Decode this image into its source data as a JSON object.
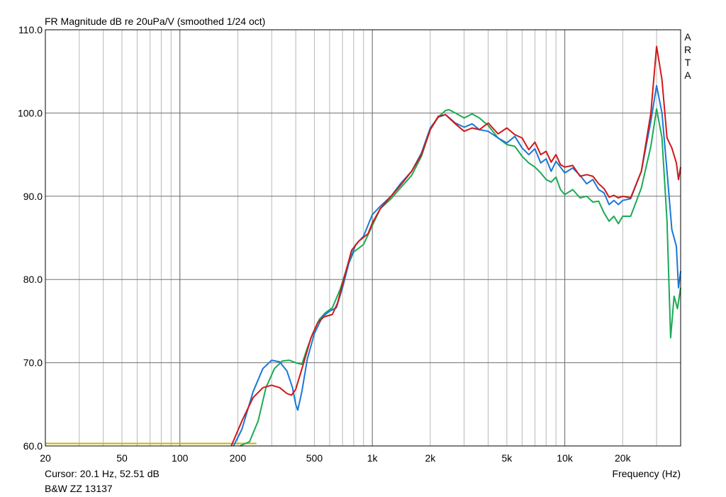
{
  "header": {
    "title": "FR Magnitude dB re 20uPa/V (smoothed 1/24 oct)",
    "brand_letters": [
      "A",
      "R",
      "T",
      "A"
    ]
  },
  "footer": {
    "cursor": "Cursor: 20.1 Hz, 52.51 dB",
    "device": "B&W ZZ 13137"
  },
  "chart_data": {
    "type": "line",
    "title": "FR Magnitude dB re 20uPa/V (smoothed 1/24 oct)",
    "xlabel": "Frequency (Hz)",
    "ylabel": "",
    "x_scale": "log",
    "xlim": [
      20,
      40000
    ],
    "ylim": [
      60,
      110
    ],
    "grid": true,
    "x_ticks": [
      {
        "value": 20,
        "label": "20"
      },
      {
        "value": 50,
        "label": "50"
      },
      {
        "value": 100,
        "label": "100"
      },
      {
        "value": 200,
        "label": "200"
      },
      {
        "value": 500,
        "label": "500"
      },
      {
        "value": 1000,
        "label": "1k"
      },
      {
        "value": 2000,
        "label": "2k"
      },
      {
        "value": 5000,
        "label": "5k"
      },
      {
        "value": 10000,
        "label": "10k"
      },
      {
        "value": 20000,
        "label": "20k"
      },
      {
        "value": 40000,
        "label": ""
      }
    ],
    "y_ticks": [
      {
        "value": 60,
        "label": "60.0"
      },
      {
        "value": 70,
        "label": "70.0"
      },
      {
        "value": 80,
        "label": "80.0"
      },
      {
        "value": 90,
        "label": "90.0"
      },
      {
        "value": 100,
        "label": "100.0"
      },
      {
        "value": 110,
        "label": "110.0"
      }
    ],
    "series": [
      {
        "color": "#c8b400",
        "points": [
          [
            20,
            60.3
          ],
          [
            250,
            60.3
          ]
        ]
      },
      {
        "color": "#1aaa55",
        "points": [
          [
            205,
            60
          ],
          [
            230,
            60.5
          ],
          [
            255,
            63
          ],
          [
            280,
            67
          ],
          [
            310,
            69.3
          ],
          [
            340,
            70.2
          ],
          [
            370,
            70.3
          ],
          [
            400,
            70
          ],
          [
            430,
            69.8
          ],
          [
            460,
            71.8
          ],
          [
            490,
            73.5
          ],
          [
            530,
            75.2
          ],
          [
            570,
            76
          ],
          [
            620,
            76.6
          ],
          [
            680,
            78.8
          ],
          [
            740,
            81.5
          ],
          [
            800,
            83.3
          ],
          [
            900,
            84.2
          ],
          [
            1000,
            86.5
          ],
          [
            1100,
            88.5
          ],
          [
            1250,
            89.7
          ],
          [
            1400,
            91
          ],
          [
            1600,
            92.5
          ],
          [
            1800,
            94.8
          ],
          [
            2000,
            98
          ],
          [
            2200,
            99.5
          ],
          [
            2400,
            100.3
          ],
          [
            2500,
            100.4
          ],
          [
            2700,
            100
          ],
          [
            3000,
            99.4
          ],
          [
            3300,
            99.9
          ],
          [
            3600,
            99.4
          ],
          [
            4000,
            98.5
          ],
          [
            4500,
            97
          ],
          [
            5000,
            96.2
          ],
          [
            5500,
            96
          ],
          [
            6000,
            94.8
          ],
          [
            6500,
            94
          ],
          [
            7000,
            93.5
          ],
          [
            7500,
            92.8
          ],
          [
            8000,
            92
          ],
          [
            8500,
            91.7
          ],
          [
            9000,
            92.3
          ],
          [
            9500,
            90.8
          ],
          [
            10000,
            90.2
          ],
          [
            11000,
            90.8
          ],
          [
            12000,
            89.8
          ],
          [
            13000,
            90
          ],
          [
            14000,
            89.3
          ],
          [
            15000,
            89.4
          ],
          [
            16000,
            88
          ],
          [
            17000,
            87
          ],
          [
            18000,
            87.6
          ],
          [
            19000,
            86.7
          ],
          [
            20000,
            87.6
          ],
          [
            22000,
            87.6
          ],
          [
            25000,
            91
          ],
          [
            28000,
            96
          ],
          [
            30000,
            100.5
          ],
          [
            32000,
            97
          ],
          [
            34000,
            87
          ],
          [
            35500,
            73
          ],
          [
            37000,
            78
          ],
          [
            38500,
            76.5
          ],
          [
            40000,
            79
          ]
        ]
      },
      {
        "color": "#1a78d4",
        "points": [
          [
            190,
            60
          ],
          [
            210,
            62
          ],
          [
            240,
            66.5
          ],
          [
            270,
            69.3
          ],
          [
            300,
            70.3
          ],
          [
            330,
            70.1
          ],
          [
            360,
            69
          ],
          [
            385,
            67
          ],
          [
            400,
            65
          ],
          [
            410,
            64.3
          ],
          [
            430,
            66.5
          ],
          [
            460,
            70.5
          ],
          [
            500,
            73.5
          ],
          [
            550,
            75.5
          ],
          [
            600,
            76.2
          ],
          [
            650,
            76.6
          ],
          [
            700,
            79
          ],
          [
            760,
            82.2
          ],
          [
            820,
            84.2
          ],
          [
            900,
            85.2
          ],
          [
            1000,
            87.8
          ],
          [
            1100,
            88.8
          ],
          [
            1250,
            90
          ],
          [
            1400,
            91.5
          ],
          [
            1600,
            93
          ],
          [
            1800,
            95.2
          ],
          [
            2000,
            98.2
          ],
          [
            2200,
            99.5
          ],
          [
            2400,
            99.8
          ],
          [
            2700,
            98.8
          ],
          [
            3000,
            98.3
          ],
          [
            3300,
            98.7
          ],
          [
            3600,
            98
          ],
          [
            4000,
            97.8
          ],
          [
            4500,
            97
          ],
          [
            5000,
            96.4
          ],
          [
            5500,
            97.2
          ],
          [
            6000,
            95.8
          ],
          [
            6500,
            95
          ],
          [
            7000,
            95.7
          ],
          [
            7500,
            94
          ],
          [
            8000,
            94.5
          ],
          [
            8500,
            93
          ],
          [
            9000,
            94.2
          ],
          [
            9500,
            93.5
          ],
          [
            10000,
            92.8
          ],
          [
            11000,
            93.4
          ],
          [
            12000,
            92.5
          ],
          [
            13000,
            91.5
          ],
          [
            14000,
            92
          ],
          [
            15000,
            90.8
          ],
          [
            16000,
            90.4
          ],
          [
            17000,
            89
          ],
          [
            18000,
            89.5
          ],
          [
            19000,
            89
          ],
          [
            20000,
            89.5
          ],
          [
            22000,
            89.7
          ],
          [
            25000,
            93
          ],
          [
            28000,
            99
          ],
          [
            30000,
            103.3
          ],
          [
            32000,
            100
          ],
          [
            34000,
            93
          ],
          [
            36000,
            86
          ],
          [
            38000,
            84
          ],
          [
            39000,
            79
          ],
          [
            40000,
            81
          ]
        ]
      },
      {
        "color": "#d01818",
        "points": [
          [
            185,
            60
          ],
          [
            210,
            63
          ],
          [
            240,
            65.8
          ],
          [
            270,
            67
          ],
          [
            300,
            67.3
          ],
          [
            330,
            67
          ],
          [
            360,
            66.3
          ],
          [
            380,
            66.1
          ],
          [
            400,
            66.8
          ],
          [
            440,
            70
          ],
          [
            480,
            73
          ],
          [
            520,
            74.8
          ],
          [
            560,
            75.5
          ],
          [
            620,
            75.8
          ],
          [
            660,
            77.2
          ],
          [
            720,
            80.5
          ],
          [
            780,
            83.5
          ],
          [
            850,
            84.6
          ],
          [
            950,
            85.5
          ],
          [
            1000,
            86.8
          ],
          [
            1100,
            88.5
          ],
          [
            1250,
            90
          ],
          [
            1400,
            91.3
          ],
          [
            1600,
            93
          ],
          [
            1800,
            95
          ],
          [
            2000,
            98
          ],
          [
            2200,
            99.6
          ],
          [
            2400,
            99.8
          ],
          [
            2700,
            98.7
          ],
          [
            3000,
            97.8
          ],
          [
            3300,
            98.2
          ],
          [
            3600,
            98
          ],
          [
            4000,
            98.8
          ],
          [
            4500,
            97.5
          ],
          [
            5000,
            98.2
          ],
          [
            5500,
            97.4
          ],
          [
            6000,
            97
          ],
          [
            6500,
            95.6
          ],
          [
            7000,
            96.5
          ],
          [
            7500,
            95
          ],
          [
            8000,
            95.4
          ],
          [
            8500,
            94.1
          ],
          [
            9000,
            95
          ],
          [
            9500,
            93.8
          ],
          [
            10000,
            93.5
          ],
          [
            11000,
            93.7
          ],
          [
            12000,
            92.4
          ],
          [
            13000,
            92.6
          ],
          [
            14000,
            92.4
          ],
          [
            15000,
            91.5
          ],
          [
            16000,
            90.9
          ],
          [
            17000,
            89.9
          ],
          [
            18000,
            90.1
          ],
          [
            19000,
            89.8
          ],
          [
            20000,
            90
          ],
          [
            22000,
            89.8
          ],
          [
            25000,
            93
          ],
          [
            28000,
            100
          ],
          [
            30000,
            108
          ],
          [
            32000,
            104
          ],
          [
            34000,
            97
          ],
          [
            36000,
            95.8
          ],
          [
            38000,
            94
          ],
          [
            39000,
            92
          ],
          [
            40000,
            93.5
          ]
        ]
      }
    ]
  }
}
